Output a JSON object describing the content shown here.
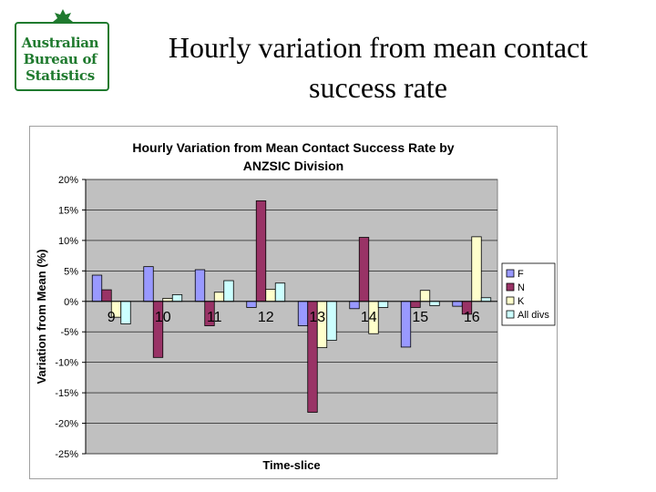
{
  "header": {
    "logo": {
      "icon": "coat-of-arms-icon",
      "lines": [
        "Australian",
        "Bureau of",
        "Statistics"
      ],
      "color": "#1f7a2e"
    },
    "title": "Hourly variation from mean contact success rate"
  },
  "chart_data": {
    "type": "bar",
    "title": "Hourly Variation from Mean Contact Success Rate by ANZSIC Division",
    "xlabel": "Time-slice",
    "ylabel": "Variation from Mean (%)",
    "ylim": [
      -25,
      20
    ],
    "yticks": [
      20,
      15,
      10,
      5,
      0,
      -5,
      -10,
      -15,
      -20,
      -25
    ],
    "ytick_labels": [
      "20%",
      "15%",
      "10%",
      "5%",
      "0%",
      "-5%",
      "-10%",
      "-15%",
      "-20%",
      "-25%"
    ],
    "categories": [
      "9",
      "10",
      "11",
      "12",
      "13",
      "14",
      "15",
      "16"
    ],
    "grid": true,
    "legend_position": "right",
    "plot_background": "#c0c0c0",
    "series": [
      {
        "name": "F",
        "color": "#9999ff",
        "values": [
          4.3,
          5.7,
          5.2,
          -1.0,
          -4.0,
          -1.2,
          -7.5,
          -0.8
        ]
      },
      {
        "name": "N",
        "color": "#993366",
        "values": [
          1.9,
          -9.2,
          -4.0,
          16.5,
          -18.2,
          10.5,
          -1.0,
          -2.1
        ]
      },
      {
        "name": "K",
        "color": "#ffffcc",
        "values": [
          -2.6,
          0.5,
          1.5,
          2.0,
          -7.6,
          -5.3,
          1.8,
          10.6
        ]
      },
      {
        "name": "All divs",
        "color": "#ccffff",
        "values": [
          -3.7,
          1.1,
          3.4,
          3.0,
          -6.4,
          -1.0,
          -0.7,
          0.6
        ]
      }
    ]
  }
}
